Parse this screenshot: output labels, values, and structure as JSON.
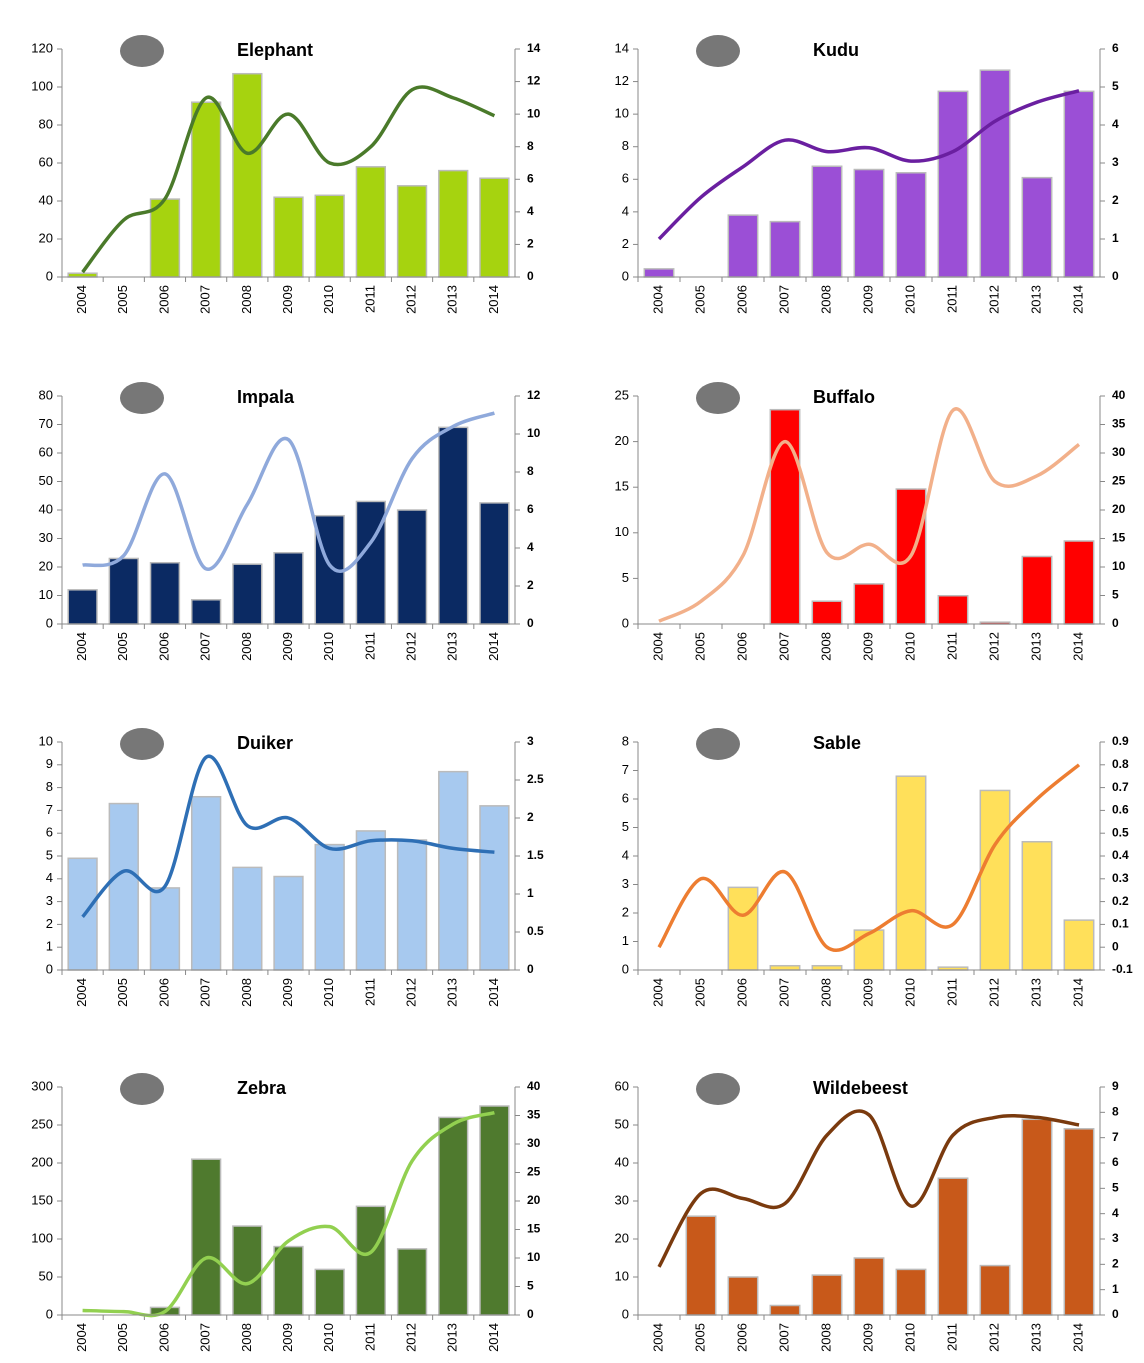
{
  "chart_data": [
    {
      "type": "combo",
      "title": "Elephant",
      "categories": [
        "2004",
        "2005",
        "2006",
        "2007",
        "2008",
        "2009",
        "2010",
        "2011",
        "2012",
        "2013",
        "2014"
      ],
      "ylim": [
        0,
        120
      ],
      "yticks": [
        0,
        20,
        40,
        60,
        80,
        100,
        120
      ],
      "y2lim": [
        0,
        14
      ],
      "y2ticks": [
        0,
        2,
        4,
        6,
        8,
        10,
        12,
        14
      ],
      "series": [
        {
          "color": "#a6d30f",
          "values": [
            2,
            0,
            41,
            92,
            107,
            42,
            43,
            58,
            48,
            56,
            52
          ]
        },
        {
          "color": "#4a7a2a",
          "axis": "y2",
          "values": [
            0.3,
            3.5,
            4.8,
            11,
            7.6,
            10,
            7,
            8,
            11.5,
            11,
            9.9
          ]
        }
      ]
    },
    {
      "type": "combo",
      "title": "Kudu",
      "categories": [
        "2004",
        "2005",
        "2006",
        "2007",
        "2008",
        "2009",
        "2010",
        "2011",
        "2012",
        "2013",
        "2014"
      ],
      "ylim": [
        0,
        14
      ],
      "yticks": [
        0,
        2,
        4,
        6,
        8,
        10,
        12,
        14
      ],
      "y2lim": [
        0,
        6
      ],
      "y2ticks": [
        0,
        1,
        2,
        3,
        4,
        5,
        6
      ],
      "series": [
        {
          "color": "#9b4fd6",
          "values": [
            0.5,
            0,
            3.8,
            3.4,
            6.8,
            6.6,
            6.4,
            11.4,
            12.7,
            6.1,
            11.4
          ]
        },
        {
          "color": "#6a1fa0",
          "axis": "y2",
          "values": [
            1.0,
            2.1,
            2.9,
            3.6,
            3.3,
            3.4,
            3.05,
            3.3,
            4.1,
            4.6,
            4.9
          ]
        }
      ]
    },
    {
      "type": "combo",
      "title": "Impala",
      "categories": [
        "2004",
        "2005",
        "2006",
        "2007",
        "2008",
        "2009",
        "2010",
        "2011",
        "2012",
        "2013",
        "2014"
      ],
      "ylim": [
        0,
        80
      ],
      "yticks": [
        0,
        10,
        20,
        30,
        40,
        50,
        60,
        70,
        80
      ],
      "y2lim": [
        0,
        12
      ],
      "y2ticks": [
        0,
        2,
        4,
        6,
        8,
        10,
        12
      ],
      "series": [
        {
          "color": "#0b2a63",
          "values": [
            12,
            23,
            21.5,
            8.5,
            21,
            25,
            38,
            43,
            40,
            69,
            42.5
          ]
        },
        {
          "color": "#8fa9db",
          "axis": "y2",
          "values": [
            3.1,
            3.6,
            7.9,
            2.9,
            6.3,
            9.7,
            3.1,
            4.3,
            8.7,
            10.4,
            11.1
          ]
        }
      ]
    },
    {
      "type": "combo",
      "title": "Buffalo",
      "categories": [
        "2004",
        "2005",
        "2006",
        "2007",
        "2008",
        "2009",
        "2010",
        "2011",
        "2012",
        "2013",
        "2014"
      ],
      "ylim": [
        0,
        25
      ],
      "yticks": [
        0,
        5,
        10,
        15,
        20,
        25
      ],
      "y2lim": [
        0,
        40
      ],
      "y2ticks": [
        0,
        5,
        10,
        15,
        20,
        25,
        30,
        35,
        40
      ],
      "series": [
        {
          "color": "#ff0000",
          "values": [
            0,
            0,
            0,
            23.5,
            2.5,
            4.4,
            14.8,
            3.1,
            0.2,
            7.4,
            9.1
          ]
        },
        {
          "color": "#f2b08a",
          "axis": "y2",
          "values": [
            0.5,
            4,
            12,
            32,
            12.5,
            14,
            12,
            37.5,
            25,
            26,
            31.5
          ]
        }
      ]
    },
    {
      "type": "combo",
      "title": "Duiker",
      "categories": [
        "2004",
        "2005",
        "2006",
        "2007",
        "2008",
        "2009",
        "2010",
        "2011",
        "2012",
        "2013",
        "2014"
      ],
      "ylim": [
        0,
        10
      ],
      "yticks": [
        0,
        1,
        2,
        3,
        4,
        5,
        6,
        7,
        8,
        9,
        10
      ],
      "y2lim": [
        0,
        3
      ],
      "y2ticks": [
        0,
        0.5,
        1,
        1.5,
        2,
        2.5,
        3
      ],
      "series": [
        {
          "color": "#a7c9ef",
          "values": [
            4.9,
            7.3,
            3.6,
            7.6,
            4.5,
            4.1,
            5.5,
            6.1,
            5.7,
            8.7,
            7.2
          ]
        },
        {
          "color": "#2e6fb5",
          "axis": "y2",
          "values": [
            0.7,
            1.3,
            1.1,
            2.8,
            1.9,
            2.0,
            1.6,
            1.7,
            1.7,
            1.6,
            1.55
          ]
        }
      ]
    },
    {
      "type": "combo",
      "title": "Sable",
      "categories": [
        "2004",
        "2005",
        "2006",
        "2007",
        "2008",
        "2009",
        "2010",
        "2011",
        "2012",
        "2013",
        "2014"
      ],
      "ylim": [
        0,
        8
      ],
      "yticks": [
        0,
        1,
        2,
        3,
        4,
        5,
        6,
        7,
        8
      ],
      "y2lim": [
        -0.1,
        0.9
      ],
      "y2ticks": [
        -0.1,
        0,
        0.1,
        0.2,
        0.3,
        0.4,
        0.5,
        0.6,
        0.7,
        0.8,
        0.9
      ],
      "series": [
        {
          "color": "#ffe05a",
          "values": [
            0,
            0,
            2.9,
            0.15,
            0.15,
            1.4,
            6.8,
            0.1,
            6.3,
            4.5,
            1.75
          ]
        },
        {
          "color": "#ed7d31",
          "axis": "y2",
          "values": [
            0,
            0.3,
            0.14,
            0.33,
            0.0,
            0.06,
            0.16,
            0.1,
            0.45,
            0.65,
            0.8
          ]
        }
      ]
    },
    {
      "type": "combo",
      "title": "Zebra",
      "categories": [
        "2004",
        "2005",
        "2006",
        "2007",
        "2008",
        "2009",
        "2010",
        "2011",
        "2012",
        "2013",
        "2014"
      ],
      "ylim": [
        0,
        300
      ],
      "yticks": [
        0,
        50,
        100,
        150,
        200,
        250,
        300
      ],
      "y2lim": [
        0,
        40
      ],
      "y2ticks": [
        0,
        5,
        10,
        15,
        20,
        25,
        30,
        35,
        40
      ],
      "series": [
        {
          "color": "#4f7a2e",
          "values": [
            0,
            0,
            10,
            205,
            117,
            90,
            60,
            143,
            87,
            260,
            275
          ]
        },
        {
          "color": "#92d050",
          "axis": "y2",
          "values": [
            0.8,
            0.6,
            0.6,
            10,
            5.5,
            13,
            15.5,
            11,
            27,
            33.5,
            35.5
          ]
        }
      ]
    },
    {
      "type": "combo",
      "title": "Wildebeest",
      "categories": [
        "2004",
        "2005",
        "2006",
        "2007",
        "2008",
        "2009",
        "2010",
        "2011",
        "2012",
        "2013",
        "2014"
      ],
      "ylim": [
        0,
        60
      ],
      "yticks": [
        0,
        10,
        20,
        30,
        40,
        50,
        60
      ],
      "y2lim": [
        0,
        9
      ],
      "y2ticks": [
        0,
        1,
        2,
        3,
        4,
        5,
        6,
        7,
        8,
        9
      ],
      "series": [
        {
          "color": "#c8591a",
          "values": [
            0,
            26,
            10,
            2.5,
            10.5,
            15,
            12,
            36,
            13,
            51.5,
            49
          ]
        },
        {
          "color": "#7a3a0e",
          "axis": "y2",
          "values": [
            1.9,
            4.8,
            4.6,
            4.4,
            7.1,
            7.9,
            4.3,
            7.1,
            7.8,
            7.8,
            7.5
          ]
        }
      ]
    }
  ]
}
